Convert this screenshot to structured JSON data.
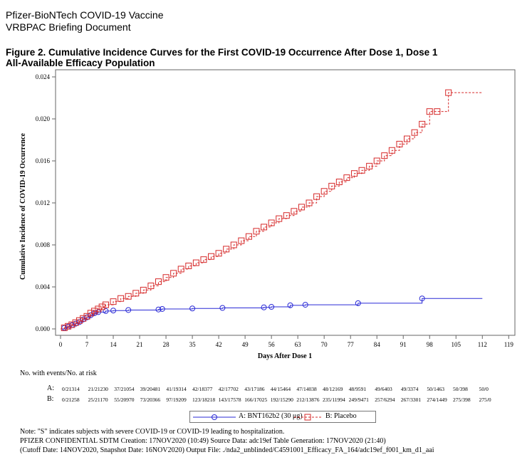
{
  "header": {
    "line1": "Pfizer-BioNTech COVID-19 Vaccine",
    "line2": "VRBPAC Briefing Document"
  },
  "figure": {
    "title_line1": "Figure 2. Cumulative Incidence Curves for the First COVID-19 Occurrence After Dose 1, Dose 1",
    "title_line2": "All-Available Efficacy Population"
  },
  "chart_data": {
    "type": "line",
    "xlabel": "Days After Dose 1",
    "ylabel": "Cumulative Incidence of COVID-19 Occurrence",
    "xlim": [
      0,
      119
    ],
    "ylim": [
      0,
      0.024
    ],
    "x_ticks": [
      "0",
      "7",
      "14",
      "21",
      "28",
      "35",
      "42",
      "49",
      "56",
      "63",
      "70",
      "77",
      "84",
      "91",
      "98",
      "105",
      "112",
      "119"
    ],
    "y_ticks": [
      "0.000",
      "0.004",
      "0.008",
      "0.012",
      "0.016",
      "0.020",
      "0.024"
    ],
    "legend_position": "bottom",
    "series": [
      {
        "name": "A: BNT162b2 (30 μg)",
        "color": "#2a2ad6",
        "line_style": "solid",
        "marker": "circle",
        "x": [
          0,
          1,
          2,
          3,
          4,
          5,
          6,
          7,
          8,
          9,
          10,
          12,
          14,
          18,
          26,
          27,
          35,
          43,
          54,
          56,
          61,
          65,
          79,
          96,
          112
        ],
        "y": [
          0,
          0.0001,
          0.00022,
          0.00035,
          0.0005,
          0.00065,
          0.0009,
          0.0011,
          0.0013,
          0.0015,
          0.0016,
          0.0017,
          0.00175,
          0.0018,
          0.00185,
          0.0019,
          0.00195,
          0.002,
          0.00205,
          0.0021,
          0.00225,
          0.0023,
          0.00245,
          0.0029,
          0.0029
        ]
      },
      {
        "name": "B: Placebo",
        "color": "#d62a2a",
        "line_style": "dashed",
        "marker": "square",
        "x": [
          0,
          1,
          2,
          3,
          4,
          5,
          6,
          7,
          8,
          9,
          10,
          11,
          12,
          14,
          16,
          18,
          20,
          22,
          24,
          26,
          28,
          30,
          32,
          34,
          36,
          38,
          40,
          42,
          44,
          46,
          48,
          50,
          52,
          54,
          56,
          58,
          60,
          62,
          64,
          66,
          68,
          70,
          72,
          74,
          76,
          78,
          80,
          82,
          84,
          86,
          88,
          90,
          92,
          94,
          96,
          98,
          100,
          103,
          112
        ],
        "y": [
          0,
          0.0001,
          0.00025,
          0.0004,
          0.0006,
          0.0008,
          0.001,
          0.0012,
          0.0015,
          0.0017,
          0.0019,
          0.0021,
          0.0023,
          0.0026,
          0.0029,
          0.0031,
          0.0034,
          0.0037,
          0.0041,
          0.0045,
          0.0049,
          0.0053,
          0.0057,
          0.006,
          0.0063,
          0.0066,
          0.0069,
          0.0072,
          0.0076,
          0.008,
          0.0084,
          0.0088,
          0.0093,
          0.0097,
          0.0101,
          0.0105,
          0.0108,
          0.0112,
          0.0116,
          0.012,
          0.0126,
          0.0131,
          0.0136,
          0.014,
          0.0144,
          0.0148,
          0.0151,
          0.0155,
          0.016,
          0.0165,
          0.017,
          0.0176,
          0.0181,
          0.0187,
          0.0195,
          0.0207,
          0.0207,
          0.0225,
          0.0225
        ]
      }
    ],
    "risk_table": {
      "title": "No. with events/No. at risk",
      "rows": [
        {
          "label": "A:",
          "values": [
            "0/21314",
            "21/21230",
            "37/21054",
            "39/20481",
            "41/19314",
            "42/18377",
            "42/17702",
            "43/17186",
            "44/15464",
            "47/14038",
            "48/12169",
            "48/9591",
            "49/6403",
            "49/3374",
            "50/1463",
            "50/398",
            "50/0"
          ]
        },
        {
          "label": "B:",
          "values": [
            "0/21258",
            "25/21170",
            "55/20970",
            "73/20366",
            "97/19209",
            "123/18218",
            "143/17578",
            "166/17025",
            "192/15290",
            "212/13876",
            "235/11994",
            "249/9471",
            "257/6294",
            "267/3301",
            "274/1449",
            "275/398",
            "275/0"
          ]
        }
      ]
    }
  },
  "notes": {
    "line1": "Note: \"S\" indicates subjects with severe COVID-19 or COVID-19 leading to hospitalization.",
    "line2": "PFIZER CONFIDENTIAL  SDTM Creation: 17NOV2020 (10:49)  Source Data: adc19ef  Table Generation: 17NOV2020 (21:40)",
    "line3": "(Cutoff Date: 14NOV2020, Snapshot Date: 16NOV2020) Output File: ./nda2_unblinded/C4591001_Efficacy_FA_164/adc19ef_f001_km_d1_aai"
  }
}
